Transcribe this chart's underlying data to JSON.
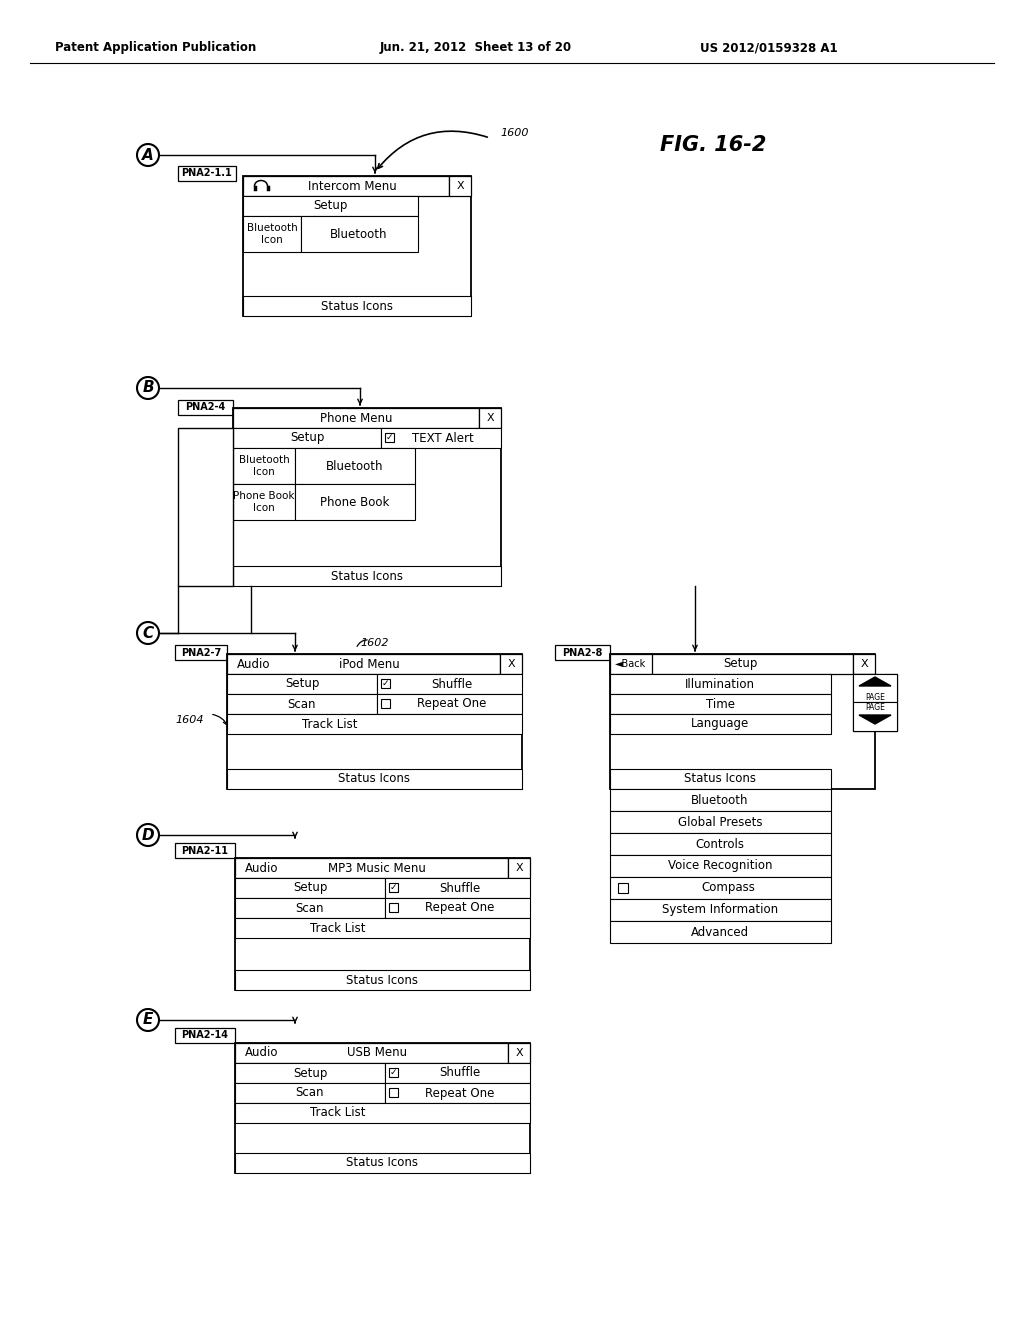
{
  "header_left": "Patent Application Publication",
  "header_mid": "Jun. 21, 2012  Sheet 13 of 20",
  "header_right": "US 2012/0159328 A1",
  "fig_label": "FIG. 16-2",
  "bg_color": "#ffffff",
  "text_color": "#000000"
}
